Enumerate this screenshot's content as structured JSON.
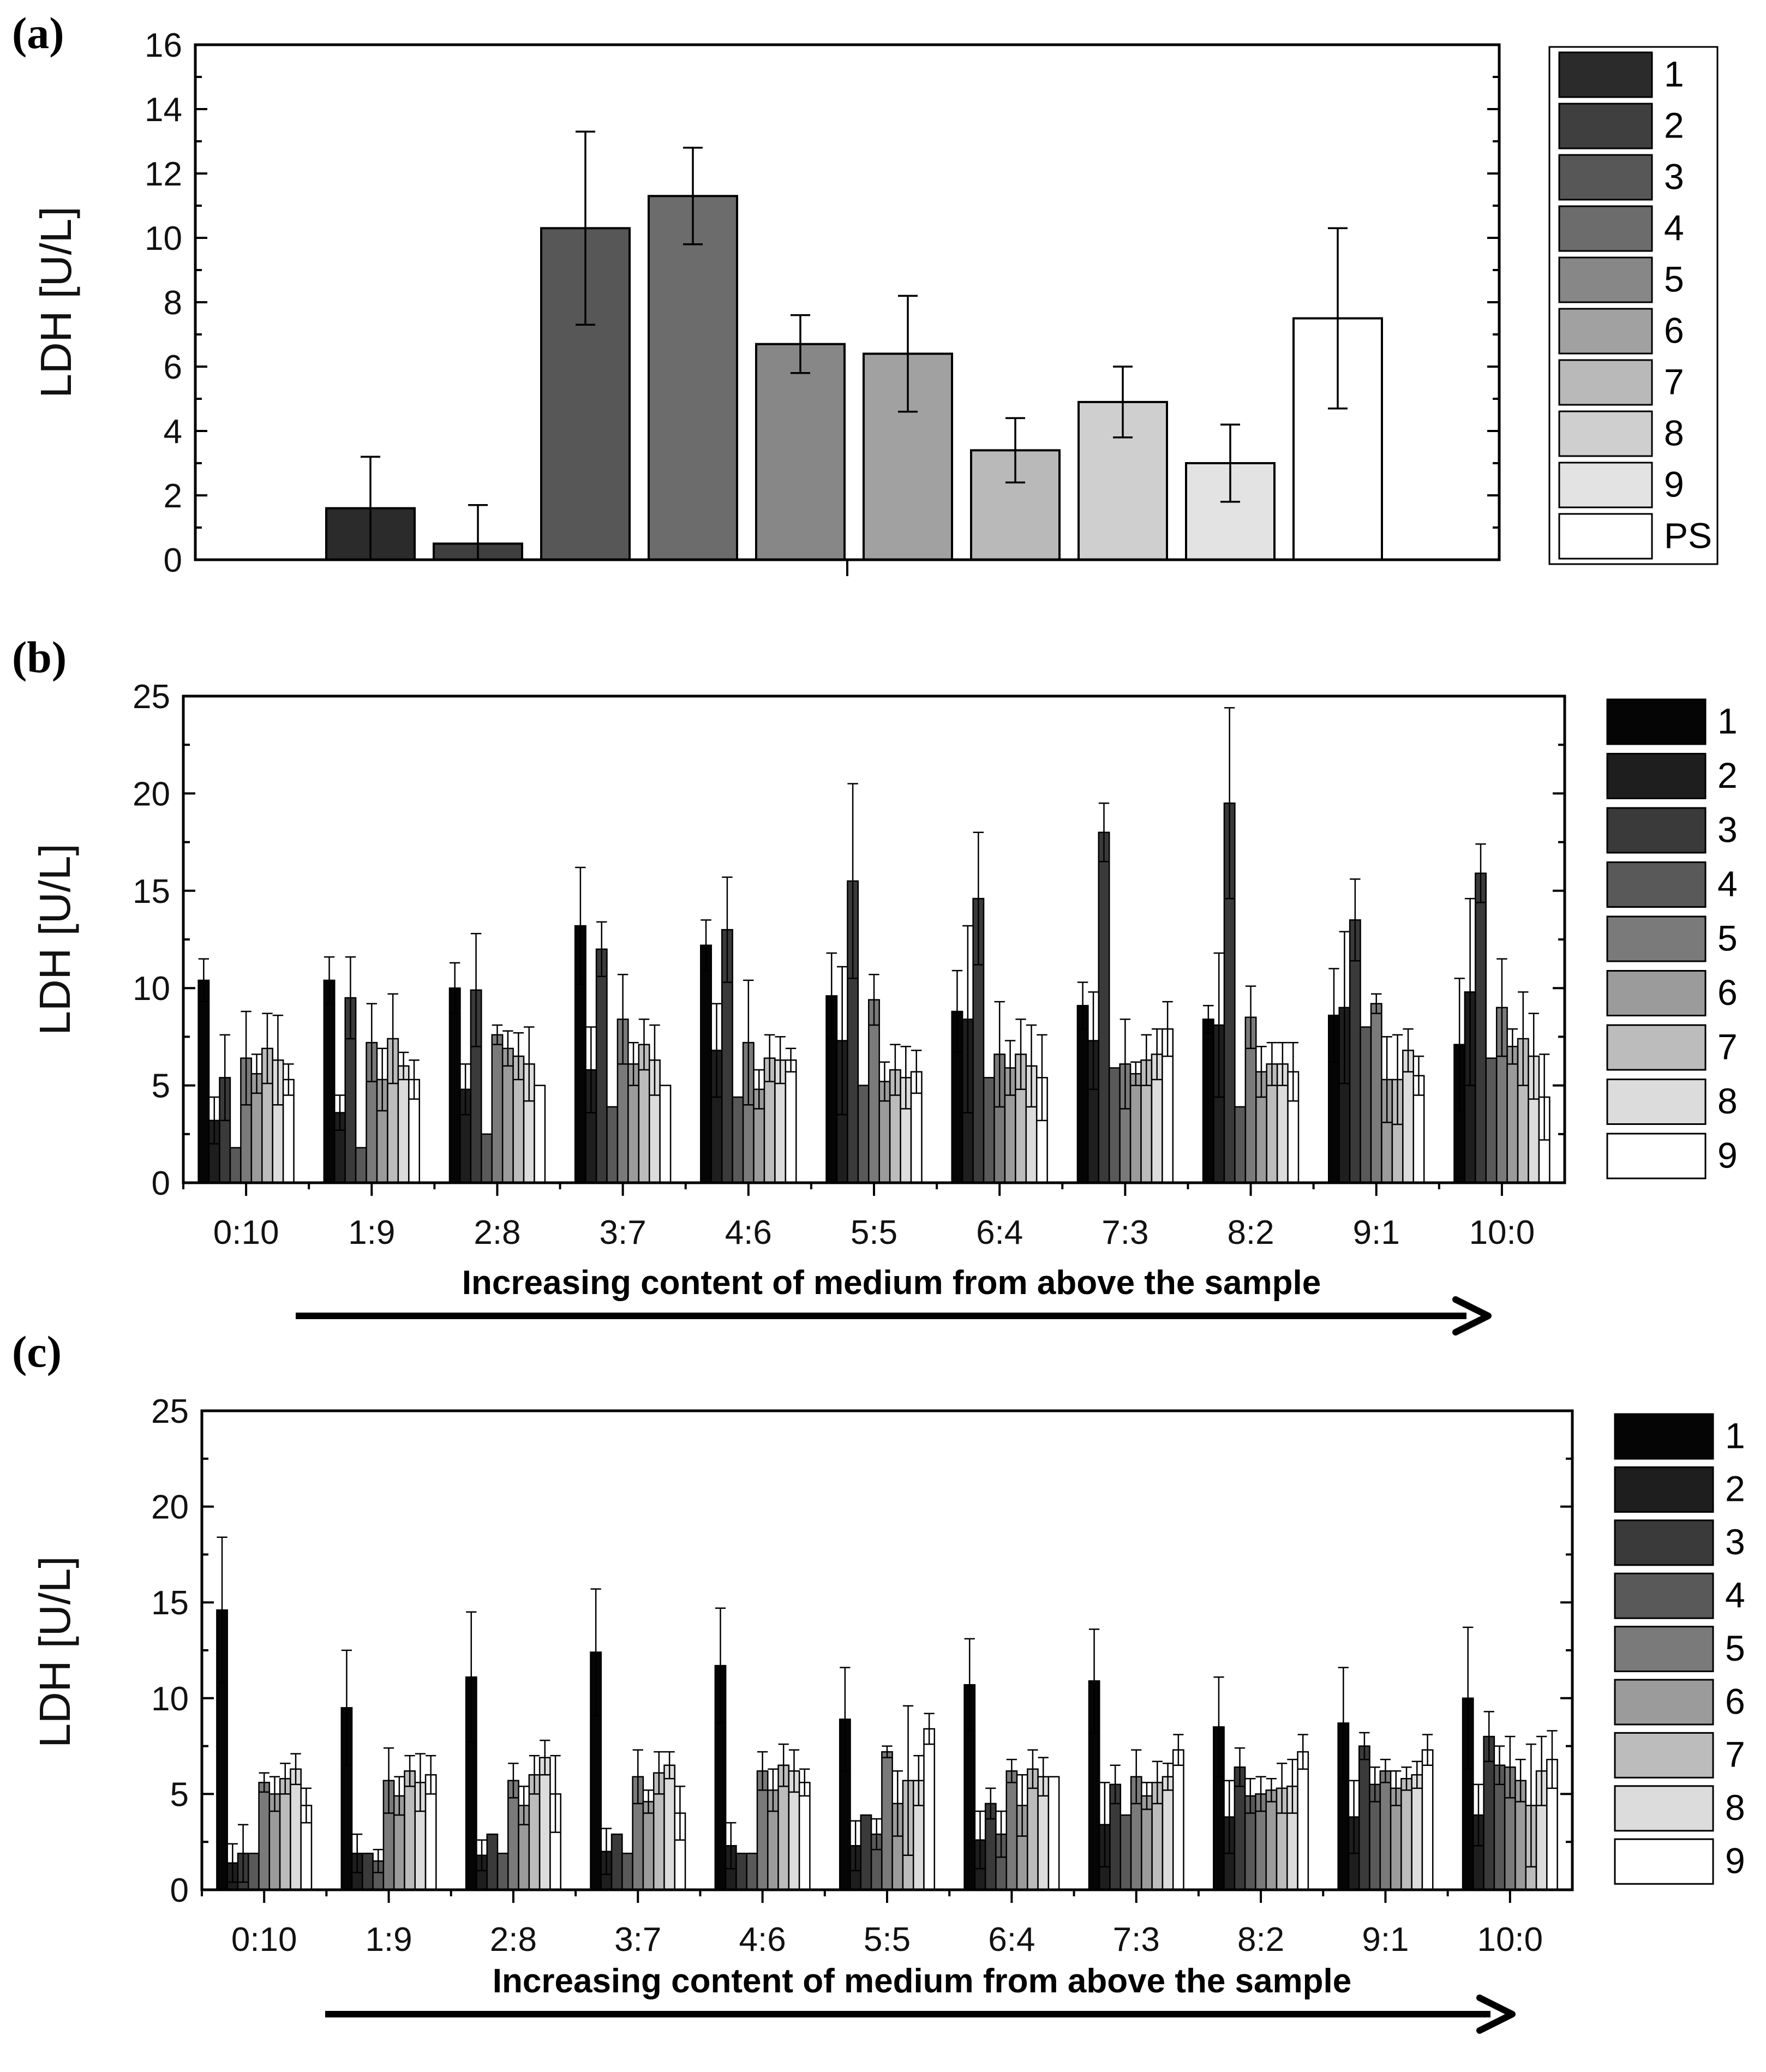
{
  "chart_data": [
    {
      "panel": "(a)",
      "type": "bar",
      "ylabel": "LDH [U/L]",
      "ylim": [
        0,
        16
      ],
      "yticks": [
        "0",
        "2",
        "4",
        "6",
        "8",
        "10",
        "12",
        "14",
        "16"
      ],
      "categories": [
        "1",
        "2",
        "3",
        "4",
        "5",
        "6",
        "7",
        "8",
        "9",
        "PS"
      ],
      "values": [
        1.6,
        0.5,
        10.3,
        11.3,
        6.7,
        6.4,
        3.4,
        4.9,
        3.0,
        7.5
      ],
      "errors": [
        1.6,
        1.2,
        3.0,
        1.5,
        0.9,
        1.8,
        1.0,
        1.1,
        1.2,
        2.8
      ],
      "colors": [
        "#2b2b2b",
        "#3f3f3f",
        "#575757",
        "#6c6c6c",
        "#878787",
        "#a1a1a1",
        "#b9b9b9",
        "#cfcfcf",
        "#e3e3e3",
        "#ffffff"
      ],
      "legend": {
        "placement": "right",
        "entries": [
          "1",
          "2",
          "3",
          "4",
          "5",
          "6",
          "7",
          "8",
          "9",
          "PS"
        ]
      }
    },
    {
      "panel": "(b)",
      "type": "bar",
      "ylabel": "LDH [U/L]",
      "xlabel": "Increasing content of medium from above the sample",
      "ylim": [
        0,
        25
      ],
      "yticks": [
        "0",
        "5",
        "10",
        "15",
        "20",
        "25"
      ],
      "categories": [
        "0:10",
        "1:9",
        "2:8",
        "3:7",
        "4:6",
        "5:5",
        "6:4",
        "7:3",
        "8:2",
        "9:1",
        "10:0"
      ],
      "colors": [
        "#050505",
        "#1e1e1e",
        "#3a3a3a",
        "#595959",
        "#7a7a7a",
        "#9b9b9b",
        "#bcbcbc",
        "#dcdcdc",
        "#ffffff"
      ],
      "series": [
        {
          "name": "1",
          "values": [
            10.4,
            10.4,
            10.0,
            13.2,
            12.2,
            9.6,
            8.8,
            9.1,
            8.4,
            8.6,
            7.1
          ],
          "errors": [
            1.1,
            1.2,
            1.3,
            3.0,
            1.3,
            2.2,
            2.1,
            1.2,
            0.7,
            2.4,
            3.4
          ]
        },
        {
          "name": "2",
          "values": [
            3.2,
            3.6,
            4.8,
            5.8,
            6.8,
            7.3,
            8.4,
            7.3,
            8.1,
            9.0,
            9.8
          ],
          "errors": [
            1.2,
            0.9,
            1.3,
            2.2,
            2.4,
            3.8,
            4.8,
            2.5,
            3.7,
            3.9,
            4.8
          ]
        },
        {
          "name": "3",
          "values": [
            5.4,
            9.5,
            9.9,
            12.0,
            13.0,
            15.5,
            14.6,
            18.0,
            19.5,
            13.5,
            15.9
          ],
          "errors": [
            2.2,
            2.1,
            2.9,
            1.4,
            2.7,
            5.0,
            3.4,
            1.5,
            4.9,
            2.1,
            1.5
          ]
        },
        {
          "name": "4",
          "values": [
            1.8,
            1.8,
            2.5,
            3.9,
            4.4,
            5.0,
            5.4,
            5.9,
            3.9,
            8.0,
            6.4
          ]
        },
        {
          "name": "5",
          "values": [
            6.4,
            7.2,
            7.6,
            8.4,
            7.2,
            9.4,
            6.6,
            6.1,
            8.5,
            9.2,
            9.0
          ],
          "errors": [
            2.4,
            2.0,
            0.5,
            2.3,
            3.2,
            1.3,
            2.7,
            2.3,
            1.6,
            0.5,
            2.5
          ]
        },
        {
          "name": "6",
          "values": [
            5.6,
            5.3,
            6.9,
            6.1,
            4.8,
            5.2,
            5.9,
            5.6,
            5.7,
            5.3,
            7.0
          ],
          "errors": [
            1.0,
            1.6,
            0.9,
            1.1,
            1.0,
            1.0,
            1.4,
            0.6,
            1.3,
            2.2,
            0.9
          ]
        },
        {
          "name": "7",
          "values": [
            6.9,
            7.4,
            6.5,
            7.1,
            6.4,
            5.8,
            6.6,
            6.3,
            6.1,
            5.3,
            7.4
          ],
          "errors": [
            1.8,
            2.3,
            1.2,
            1.3,
            1.2,
            1.3,
            1.8,
            1.3,
            1.1,
            2.3,
            2.4
          ]
        },
        {
          "name": "8",
          "values": [
            6.3,
            6.0,
            6.1,
            6.3,
            6.3,
            5.4,
            6.0,
            6.6,
            6.1,
            6.8,
            6.5
          ],
          "errors": [
            2.3,
            0.7,
            1.9,
            1.8,
            1.2,
            1.6,
            2.1,
            1.3,
            1.1,
            1.1,
            2.2
          ]
        },
        {
          "name": "9",
          "values": [
            5.3,
            5.3,
            5.0,
            5.0,
            6.3,
            5.7,
            5.4,
            7.9,
            5.7,
            5.5,
            4.4
          ],
          "errors": [
            0.8,
            1.0,
            0.0,
            0.0,
            0.6,
            1.1,
            2.2,
            1.4,
            1.5,
            1.0,
            2.2
          ]
        }
      ],
      "legend": {
        "placement": "right",
        "entries": [
          "1",
          "2",
          "3",
          "4",
          "5",
          "6",
          "7",
          "8",
          "9"
        ]
      }
    },
    {
      "panel": "(c)",
      "type": "bar",
      "ylabel": "LDH [U/L]",
      "xlabel": "Increasing content of medium from above the sample",
      "ylim": [
        0,
        25
      ],
      "yticks": [
        "0",
        "5",
        "10",
        "15",
        "20",
        "25"
      ],
      "categories": [
        "0:10",
        "1:9",
        "2:8",
        "3:7",
        "4:6",
        "5:5",
        "6:4",
        "7:3",
        "8:2",
        "9:1",
        "10:0"
      ],
      "colors": [
        "#050505",
        "#1e1e1e",
        "#3a3a3a",
        "#595959",
        "#7a7a7a",
        "#9b9b9b",
        "#bcbcbc",
        "#dcdcdc",
        "#ffffff"
      ],
      "series": [
        {
          "name": "1",
          "values": [
            14.6,
            9.5,
            11.1,
            12.4,
            11.7,
            8.9,
            10.7,
            10.9,
            8.5,
            8.7,
            10.0
          ],
          "errors": [
            3.8,
            3.0,
            3.4,
            3.3,
            3.0,
            2.7,
            2.4,
            2.7,
            2.6,
            2.9,
            3.7
          ]
        },
        {
          "name": "2",
          "values": [
            1.4,
            1.9,
            1.8,
            2.0,
            2.3,
            2.3,
            2.6,
            3.4,
            3.8,
            3.8,
            3.9
          ],
          "errors": [
            1.0,
            1.0,
            0.8,
            1.2,
            1.2,
            1.3,
            1.5,
            2.2,
            1.9,
            1.9,
            1.6
          ]
        },
        {
          "name": "3",
          "values": [
            1.9,
            1.9,
            2.9,
            2.9,
            1.9,
            3.9,
            4.5,
            5.5,
            6.4,
            7.5,
            8.0
          ],
          "errors": [
            1.5,
            0.0,
            0.0,
            0.0,
            0.0,
            0.0,
            0.8,
            1.0,
            1.0,
            0.7,
            1.3
          ]
        },
        {
          "name": "4",
          "values": [
            1.9,
            1.5,
            1.9,
            1.9,
            1.9,
            2.9,
            2.9,
            3.9,
            4.9,
            5.5,
            6.5
          ],
          "errors": [
            0.0,
            0.6,
            0.0,
            0.0,
            0.0,
            0.8,
            1.2,
            0.0,
            0.9,
            0.9,
            1.0
          ]
        },
        {
          "name": "5",
          "values": [
            5.6,
            5.7,
            5.7,
            5.9,
            6.2,
            7.2,
            6.2,
            5.9,
            5.0,
            6.2,
            6.4
          ],
          "errors": [
            0.5,
            1.7,
            0.9,
            1.4,
            1.0,
            0.3,
            0.6,
            1.4,
            0.9,
            0.6,
            1.6
          ]
        },
        {
          "name": "6",
          "values": [
            5.0,
            4.9,
            4.4,
            4.6,
            5.2,
            4.5,
            4.4,
            4.9,
            5.2,
            5.3,
            5.7
          ],
          "errors": [
            0.9,
            1.0,
            1.0,
            0.6,
            1.1,
            1.7,
            1.6,
            0.7,
            0.6,
            0.9,
            1.1
          ]
        },
        {
          "name": "7",
          "values": [
            5.8,
            6.2,
            6.0,
            6.1,
            6.5,
            5.7,
            6.3,
            5.6,
            5.3,
            5.8,
            4.4
          ],
          "errors": [
            0.8,
            0.8,
            1.0,
            1.1,
            1.1,
            3.9,
            1.0,
            1.1,
            1.3,
            0.6,
            3.2
          ]
        },
        {
          "name": "8",
          "values": [
            6.3,
            5.6,
            6.9,
            6.5,
            6.2,
            5.7,
            5.9,
            5.9,
            5.4,
            6.0,
            6.2
          ],
          "errors": [
            0.8,
            1.5,
            0.9,
            0.7,
            1.1,
            1.3,
            1.0,
            0.7,
            1.4,
            0.7,
            1.8
          ]
        },
        {
          "name": "9",
          "values": [
            4.4,
            6.0,
            5.0,
            4.0,
            5.6,
            8.4,
            5.9,
            7.3,
            7.2,
            7.3,
            6.8
          ],
          "errors": [
            0.9,
            1.0,
            2.0,
            1.4,
            0.7,
            0.8,
            0.0,
            0.8,
            0.9,
            0.8,
            1.5
          ]
        }
      ],
      "legend": {
        "placement": "right",
        "entries": [
          "1",
          "2",
          "3",
          "4",
          "5",
          "6",
          "7",
          "8",
          "9"
        ]
      }
    }
  ]
}
